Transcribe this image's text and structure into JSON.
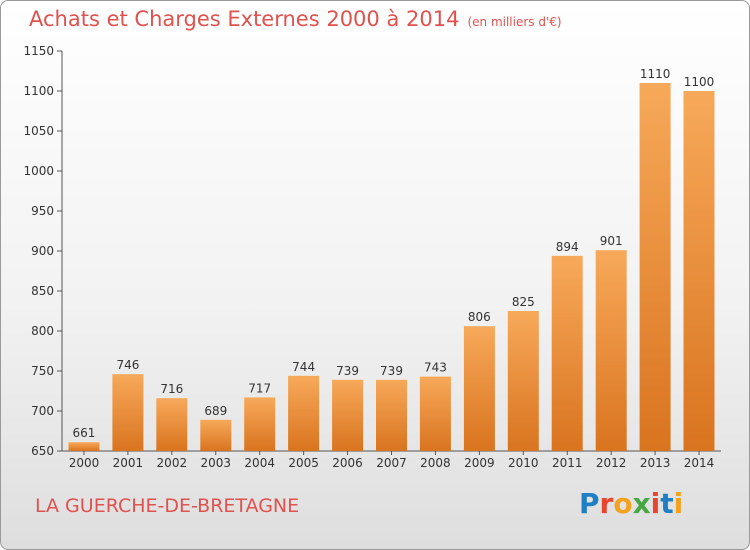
{
  "header": {
    "title": "Achats et Charges Externes 2000 à 2014",
    "unit": "(en milliers d'€)"
  },
  "footer": {
    "location": "LA GUERCHE-DE-BRETAGNE",
    "logo_text": "Proxiti"
  },
  "colors": {
    "title": "#e0524e",
    "bar_light": "#f7a95a",
    "bar_dark": "#d9741f",
    "logo": [
      "#1f7fc4",
      "#e8452f",
      "#f3a21d",
      "#48a745",
      "#e8452f",
      "#1f7fc4",
      "#f3a21d"
    ]
  },
  "chart_data": {
    "type": "bar",
    "categories": [
      "2000",
      "2001",
      "2002",
      "2003",
      "2004",
      "2005",
      "2006",
      "2007",
      "2008",
      "2009",
      "2010",
      "2011",
      "2012",
      "2013",
      "2014"
    ],
    "values": [
      661,
      746,
      716,
      689,
      717,
      744,
      739,
      739,
      743,
      806,
      825,
      894,
      901,
      1110,
      1100
    ],
    "title": "Achats et Charges Externes 2000 à 2014",
    "subtitle": "(en milliers d'€)",
    "xlabel": "",
    "ylabel": "",
    "ylim": [
      650,
      1150
    ],
    "yticks": [
      650,
      700,
      750,
      800,
      850,
      900,
      950,
      1000,
      1050,
      1100,
      1150
    ],
    "grid": false,
    "data_labels": true
  }
}
